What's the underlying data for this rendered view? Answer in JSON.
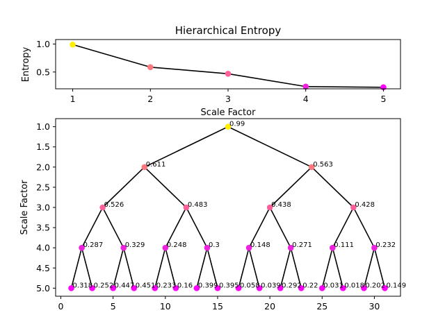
{
  "chart_data": [
    {
      "type": "line",
      "title": "Hierarchical Entropy",
      "xlabel": "Scale Factor",
      "ylabel": "Entropy",
      "xlim": [
        0.78,
        5.22
      ],
      "ylim": [
        0.2,
        1.08
      ],
      "xticks": [
        1,
        2,
        3,
        4,
        5
      ],
      "yticks": [
        0.5,
        1.0
      ],
      "ytick_labels": [
        "0.5",
        "1.0"
      ],
      "x": [
        1,
        2,
        3,
        4,
        5
      ],
      "y": [
        0.99,
        0.587,
        0.469,
        0.24,
        0.227
      ],
      "marker_colors": [
        "#ffee00",
        "#ff7a80",
        "#ff6099",
        "#ee22dd",
        "#ff00ff"
      ]
    },
    {
      "type": "scatter",
      "chart_kind": "tree",
      "xlim": [
        -0.5,
        32.5
      ],
      "ylim": [
        5.2,
        0.8
      ],
      "y_inverted": true,
      "xticks": [
        0,
        5,
        10,
        15,
        20,
        25,
        30
      ],
      "yticks": [
        1.0,
        1.5,
        2.0,
        2.5,
        3.0,
        3.5,
        4.0,
        4.5,
        5.0
      ],
      "ytick_labels": [
        "1.0",
        "1.5",
        "2.0",
        "2.5",
        "3.0",
        "3.5",
        "4.0",
        "4.5",
        "5.0"
      ],
      "ylabel": "Scale Factor",
      "nodes": [
        {
          "x": 16,
          "y": 1,
          "label": "0.99",
          "v": 0.99
        },
        {
          "x": 8,
          "y": 2,
          "label": "0.611",
          "v": 0.611
        },
        {
          "x": 24,
          "y": 2,
          "label": "0.563",
          "v": 0.563
        },
        {
          "x": 4,
          "y": 3,
          "label": "0.526",
          "v": 0.526
        },
        {
          "x": 12,
          "y": 3,
          "label": "0.483",
          "v": 0.483
        },
        {
          "x": 20,
          "y": 3,
          "label": "0.438",
          "v": 0.438
        },
        {
          "x": 28,
          "y": 3,
          "label": "0.428",
          "v": 0.428
        },
        {
          "x": 2,
          "y": 4,
          "label": "0.287",
          "v": 0.287
        },
        {
          "x": 6,
          "y": 4,
          "label": "0.329",
          "v": 0.329
        },
        {
          "x": 10,
          "y": 4,
          "label": "0.248",
          "v": 0.248
        },
        {
          "x": 14,
          "y": 4,
          "label": "0.3",
          "v": 0.3
        },
        {
          "x": 18,
          "y": 4,
          "label": "0.148",
          "v": 0.148
        },
        {
          "x": 22,
          "y": 4,
          "label": "0.271",
          "v": 0.271
        },
        {
          "x": 26,
          "y": 4,
          "label": "0.111",
          "v": 0.111
        },
        {
          "x": 30,
          "y": 4,
          "label": "0.232",
          "v": 0.232
        },
        {
          "x": 1,
          "y": 5,
          "label": "0.318",
          "v": 0.318
        },
        {
          "x": 3,
          "y": 5,
          "label": "0.252",
          "v": 0.252
        },
        {
          "x": 5,
          "y": 5,
          "label": "0.447",
          "v": 0.447
        },
        {
          "x": 7,
          "y": 5,
          "label": "0.451",
          "v": 0.451
        },
        {
          "x": 9,
          "y": 5,
          "label": "0.233",
          "v": 0.233
        },
        {
          "x": 11,
          "y": 5,
          "label": "0.16",
          "v": 0.16
        },
        {
          "x": 13,
          "y": 5,
          "label": "0.399",
          "v": 0.399
        },
        {
          "x": 15,
          "y": 5,
          "label": "0.395",
          "v": 0.395
        },
        {
          "x": 17,
          "y": 5,
          "label": "0.058",
          "v": 0.058
        },
        {
          "x": 19,
          "y": 5,
          "label": "0.039",
          "v": 0.039
        },
        {
          "x": 21,
          "y": 5,
          "label": "0.292",
          "v": 0.292
        },
        {
          "x": 23,
          "y": 5,
          "label": "0.22",
          "v": 0.22
        },
        {
          "x": 25,
          "y": 5,
          "label": "0.031",
          "v": 0.031
        },
        {
          "x": 27,
          "y": 5,
          "label": "0.018",
          "v": 0.018
        },
        {
          "x": 29,
          "y": 5,
          "label": "0.202",
          "v": 0.202
        },
        {
          "x": 31,
          "y": 5,
          "label": "0.149",
          "v": 0.149
        }
      ],
      "edges": [
        [
          0,
          1
        ],
        [
          0,
          2
        ],
        [
          1,
          3
        ],
        [
          1,
          4
        ],
        [
          2,
          5
        ],
        [
          2,
          6
        ],
        [
          3,
          7
        ],
        [
          3,
          8
        ],
        [
          4,
          9
        ],
        [
          4,
          10
        ],
        [
          5,
          11
        ],
        [
          5,
          12
        ],
        [
          6,
          13
        ],
        [
          6,
          14
        ],
        [
          7,
          15
        ],
        [
          7,
          16
        ],
        [
          8,
          17
        ],
        [
          8,
          18
        ],
        [
          9,
          19
        ],
        [
          9,
          20
        ],
        [
          10,
          21
        ],
        [
          10,
          22
        ],
        [
          11,
          23
        ],
        [
          11,
          24
        ],
        [
          12,
          25
        ],
        [
          12,
          26
        ],
        [
          13,
          27
        ],
        [
          13,
          28
        ],
        [
          14,
          29
        ],
        [
          14,
          30
        ]
      ],
      "level_colors": {
        "1": "#ffee00",
        "2": "#ff7a80",
        "3": "#ff6099",
        "4": "#ee22dd",
        "5": "#ff00ff"
      }
    }
  ]
}
